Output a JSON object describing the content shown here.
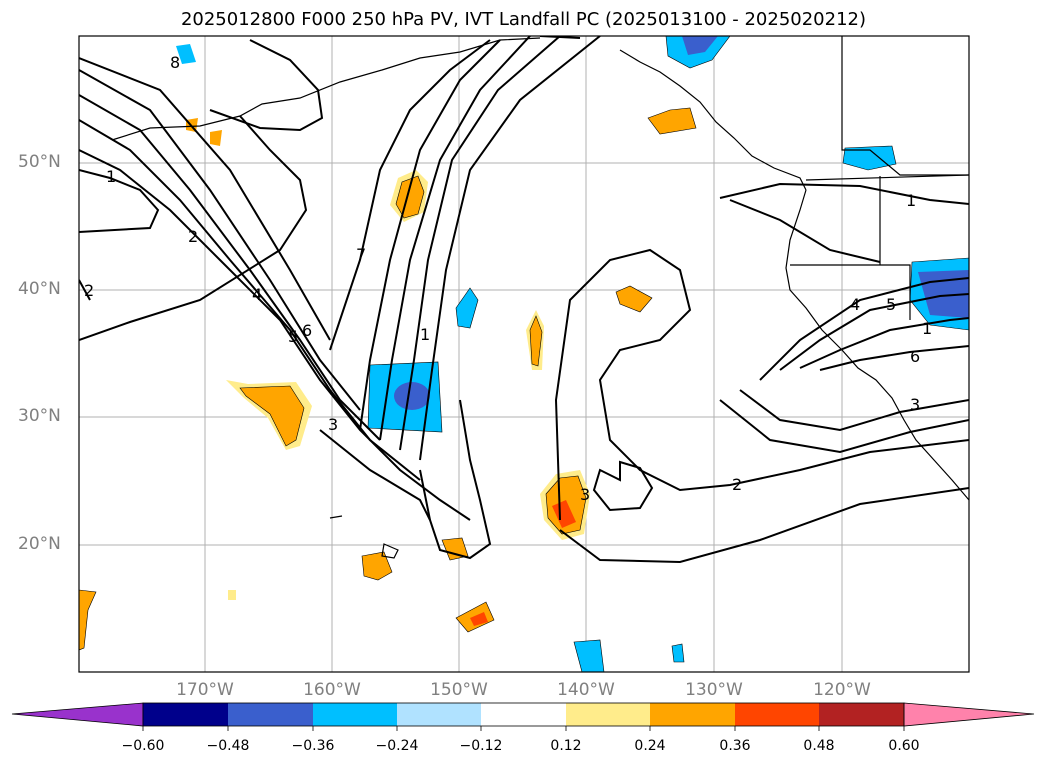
{
  "title": "2025012800 F000 250 hPa PV, IVT Landfall PC (2025013100 - 2025020212)",
  "lat_labels": [
    "50°N",
    "40°N",
    "30°N",
    "20°N"
  ],
  "lon_labels": [
    "170°W",
    "160°W",
    "150°W",
    "140°W",
    "130°W",
    "120°W"
  ],
  "contour_labels": [
    "8",
    "1",
    "2",
    "2",
    "4",
    "5",
    "6",
    "3",
    "7",
    "1",
    "3",
    "2",
    "4",
    "5",
    "6",
    "3",
    "1",
    "1"
  ],
  "colorbar": {
    "ticks": [
      "−0.60",
      "−0.48",
      "−0.36",
      "−0.24",
      "−0.12",
      "0.12",
      "0.24",
      "0.36",
      "0.48",
      "0.60"
    ],
    "colors": [
      "#9932cc",
      "#00008b",
      "#3a5fcd",
      "#00bfff",
      "#b0e2ff",
      "#ffffff",
      "#ffec8b",
      "#ffa500",
      "#ff4500",
      "#b22222",
      "#ff82ab"
    ]
  }
}
